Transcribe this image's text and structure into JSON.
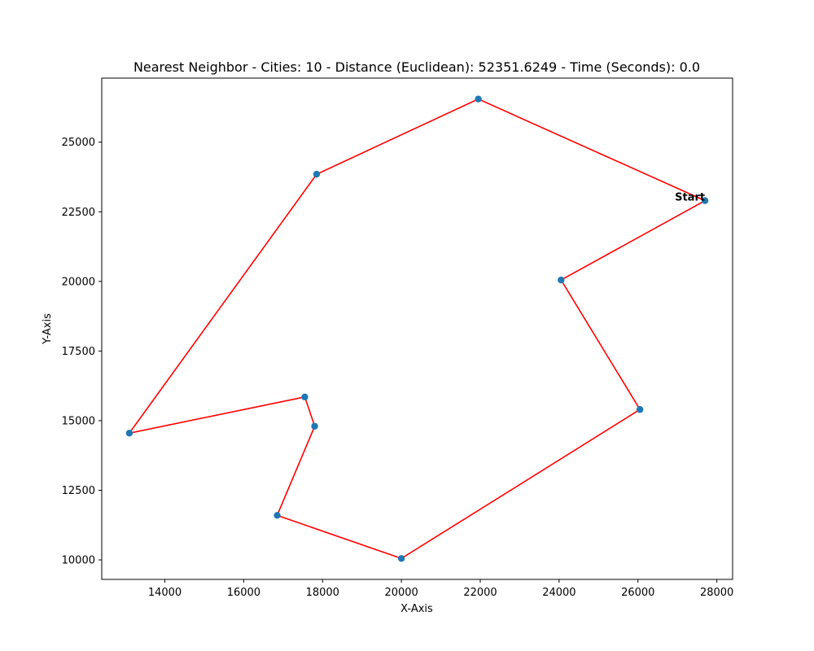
{
  "chart_data": {
    "type": "scatter",
    "title": "Nearest Neighbor - Cities: 10 - Distance (Euclidean): 52351.6249 - Time (Seconds): 0.0",
    "xlabel": "X-Axis",
    "ylabel": "Y-Axis",
    "xlim": [
      12400,
      28400
    ],
    "ylim": [
      9300,
      27300
    ],
    "xticks": [
      14000,
      16000,
      18000,
      20000,
      22000,
      24000,
      26000,
      28000
    ],
    "yticks": [
      10000,
      12500,
      15000,
      17500,
      20000,
      22500,
      25000
    ],
    "grid": false,
    "points": [
      {
        "x": 27700,
        "y": 22900
      },
      {
        "x": 24050,
        "y": 20050
      },
      {
        "x": 26050,
        "y": 15400
      },
      {
        "x": 20000,
        "y": 10050
      },
      {
        "x": 16850,
        "y": 11600
      },
      {
        "x": 17800,
        "y": 14800
      },
      {
        "x": 17550,
        "y": 15850
      },
      {
        "x": 13100,
        "y": 14550
      },
      {
        "x": 17850,
        "y": 23850
      },
      {
        "x": 21950,
        "y": 26550
      }
    ],
    "route_order": [
      0,
      1,
      2,
      3,
      4,
      5,
      6,
      7,
      8,
      9,
      0
    ],
    "annotation": {
      "text": "Start",
      "point_index": 0
    },
    "colors": {
      "points": "#1f77b4",
      "route": "#ff0000"
    }
  }
}
